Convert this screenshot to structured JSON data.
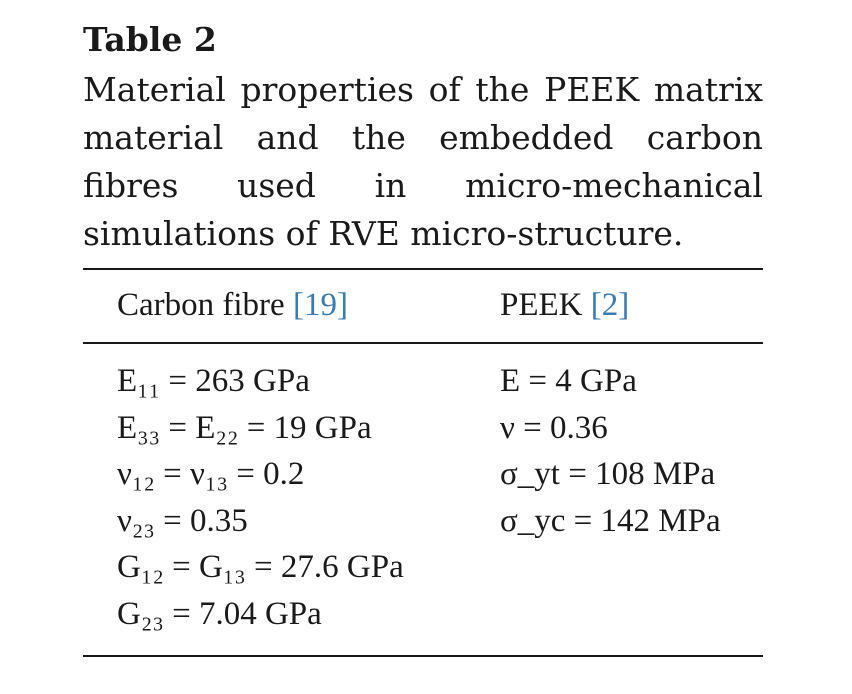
{
  "table": {
    "label": "Table 2",
    "caption": "Material properties of the PEEK matrix material and the embedded carbon fibres used in micro-mechanical simulations of RVE micro-structure.",
    "columns": [
      {
        "title": "Carbon fibre",
        "ref": "[19]"
      },
      {
        "title": "PEEK",
        "ref": "[2]"
      }
    ],
    "carbon_fibre_rows": [
      "E₁₁ = 263 GPa",
      "E₃₃ = E₂₂ = 19 GPa",
      "ν₁₂ = ν₁₃ = 0.2",
      "ν₂₃ = 0.35",
      "G₁₂ = G₁₃ = 27.6 GPa",
      "G₂₃ = 7.04 GPa"
    ],
    "peek_rows": [
      "E = 4 GPa",
      "ν = 0.36",
      "σ_yt = 108 MPa",
      "σ_yc = 142 MPa"
    ]
  }
}
